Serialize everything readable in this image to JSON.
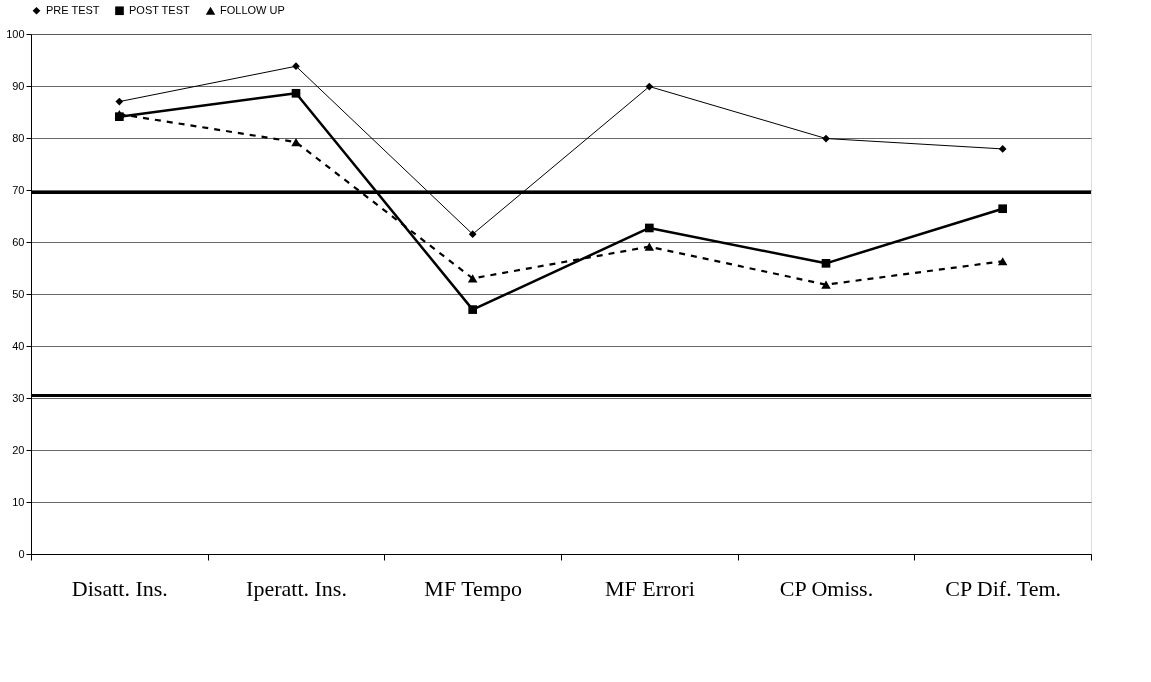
{
  "chart_data": {
    "type": "line",
    "categories": [
      "Disatt. Ins.",
      "Iperatt. Ins.",
      "MF Tempo",
      "MF Errori",
      "CP Omiss.",
      "CP Dif. Tem."
    ],
    "series": [
      {
        "name": "PRE TEST",
        "color": "#000000",
        "marker": "diamond",
        "line_style": "solid",
        "values": [
          87,
          93.8,
          61.5,
          89.9,
          79.9,
          77.9
        ]
      },
      {
        "name": "POST TEST",
        "color": "#000000",
        "marker": "square",
        "line_style": "solid",
        "values": [
          84.1,
          88.6,
          47,
          62.7,
          55.9,
          66.4
        ]
      },
      {
        "name": "FOLLOW UP",
        "color": "#000000",
        "marker": "triangle",
        "line_style": "dashed",
        "values": [
          84.6,
          79.2,
          53,
          59.1,
          51.8,
          56.3
        ]
      }
    ],
    "ylim": [
      0,
      100
    ],
    "yticks": [
      0,
      10,
      20,
      30,
      40,
      50,
      60,
      70,
      80,
      90,
      100
    ],
    "ref_lines": [
      {
        "axis": "y",
        "value": 69.5,
        "color": "#000000"
      },
      {
        "axis": "y",
        "value": 30.5,
        "color": "#000000"
      }
    ],
    "grid": "y",
    "legend": "top"
  }
}
